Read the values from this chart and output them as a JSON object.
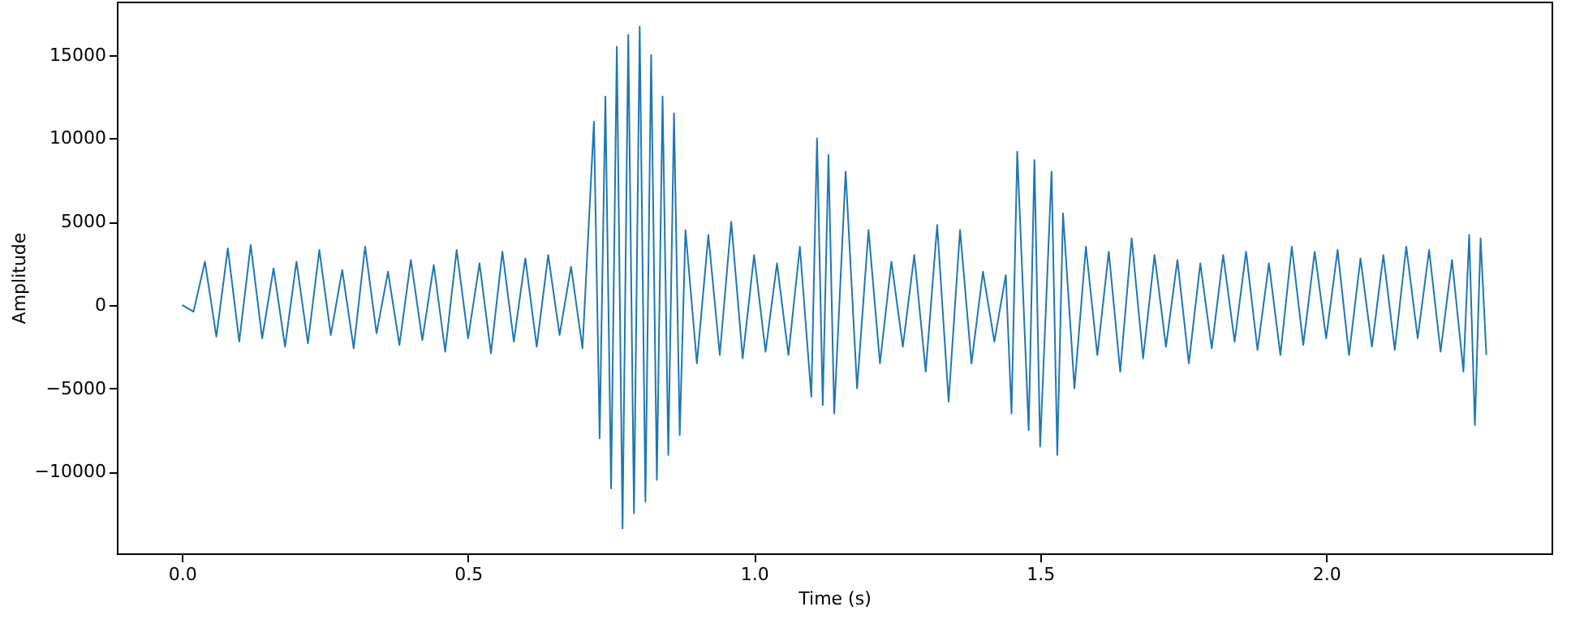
{
  "chart_data": {
    "type": "line",
    "xlabel": "Time (s)",
    "ylabel": "Amplitude",
    "x": [
      0.0,
      0.02,
      0.04,
      0.06,
      0.08,
      0.1,
      0.12,
      0.14,
      0.16,
      0.18,
      0.2,
      0.22,
      0.24,
      0.26,
      0.28,
      0.3,
      0.32,
      0.34,
      0.36,
      0.38,
      0.4,
      0.42,
      0.44,
      0.46,
      0.48,
      0.5,
      0.52,
      0.54,
      0.56,
      0.58,
      0.6,
      0.62,
      0.64,
      0.66,
      0.68,
      0.7,
      0.72,
      0.73,
      0.74,
      0.75,
      0.76,
      0.77,
      0.78,
      0.79,
      0.8,
      0.81,
      0.82,
      0.83,
      0.84,
      0.85,
      0.86,
      0.87,
      0.88,
      0.9,
      0.92,
      0.94,
      0.96,
      0.98,
      1.0,
      1.02,
      1.04,
      1.06,
      1.08,
      1.1,
      1.11,
      1.12,
      1.13,
      1.14,
      1.16,
      1.18,
      1.2,
      1.22,
      1.24,
      1.26,
      1.28,
      1.3,
      1.32,
      1.34,
      1.36,
      1.38,
      1.4,
      1.42,
      1.44,
      1.45,
      1.46,
      1.48,
      1.49,
      1.5,
      1.52,
      1.53,
      1.54,
      1.56,
      1.58,
      1.6,
      1.62,
      1.64,
      1.66,
      1.68,
      1.7,
      1.72,
      1.74,
      1.76,
      1.78,
      1.8,
      1.82,
      1.84,
      1.86,
      1.88,
      1.9,
      1.92,
      1.94,
      1.96,
      1.98,
      2.0,
      2.02,
      2.04,
      2.06,
      2.08,
      2.1,
      2.12,
      2.14,
      2.16,
      2.18,
      2.2,
      2.22,
      2.24,
      2.25,
      2.26,
      2.27,
      2.28
    ],
    "series": [
      {
        "color": "#1f77b4",
        "values": [
          0,
          -400,
          2600,
          -1900,
          3400,
          -2200,
          3600,
          -2000,
          2200,
          -2500,
          2600,
          -2300,
          3300,
          -1800,
          2100,
          -2600,
          3500,
          -1700,
          2000,
          -2400,
          2700,
          -2100,
          2400,
          -2800,
          3300,
          -2000,
          2500,
          -2900,
          3200,
          -2200,
          2800,
          -2500,
          3000,
          -1800,
          2300,
          -2600,
          11000,
          -8000,
          12500,
          -11000,
          15500,
          -13400,
          16200,
          -12500,
          16700,
          -11800,
          15000,
          -10500,
          12500,
          -9000,
          11500,
          -7800,
          4500,
          -3500,
          4200,
          -3000,
          5000,
          -3200,
          3000,
          -2800,
          2500,
          -3000,
          3500,
          -5500,
          10000,
          -6000,
          9000,
          -6500,
          8000,
          -5000,
          4500,
          -3500,
          2600,
          -2500,
          3000,
          -4000,
          4800,
          -5800,
          4500,
          -3500,
          2000,
          -2200,
          1800,
          -6500,
          9200,
          -7500,
          8700,
          -8500,
          8000,
          -9000,
          5500,
          -5000,
          3500,
          -3000,
          3200,
          -4000,
          4000,
          -3200,
          3000,
          -2500,
          2700,
          -3500,
          2500,
          -2600,
          3000,
          -2200,
          3200,
          -2700,
          2500,
          -3000,
          3500,
          -2400,
          3200,
          -2000,
          3300,
          -3000,
          2800,
          -2500,
          3000,
          -2700,
          3500,
          -2000,
          3300,
          -2800,
          2700,
          -4000,
          4200,
          -7200,
          4000,
          -3000
        ]
      }
    ],
    "xlim": [
      -0.114,
      2.394
    ],
    "ylim": [
      -14900,
      18200
    ],
    "xticks": [
      {
        "value": 0,
        "label": "0.0"
      },
      {
        "value": 0.5,
        "label": "0.5"
      },
      {
        "value": 1,
        "label": "1.0"
      },
      {
        "value": 1.5,
        "label": "1.5"
      },
      {
        "value": 2,
        "label": "2.0"
      }
    ],
    "yticks": [
      {
        "value": -10000,
        "label": "−10000"
      },
      {
        "value": -5000,
        "label": "−5000"
      },
      0,
      5000,
      10000,
      15000
    ],
    "grid": false,
    "marker": "none",
    "line_style": "solid"
  }
}
